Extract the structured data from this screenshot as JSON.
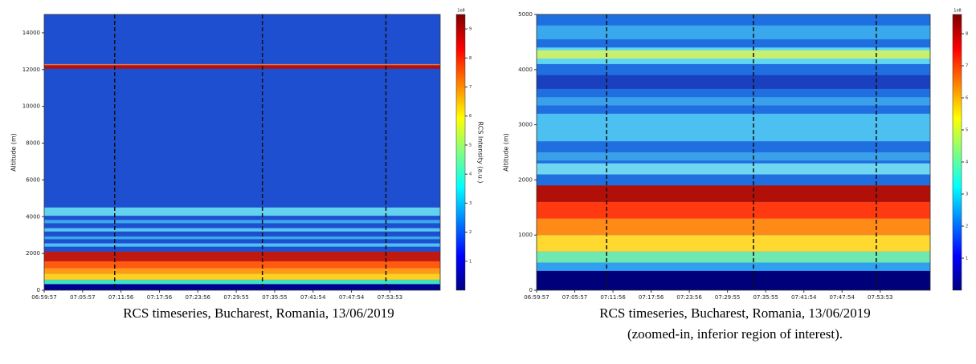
{
  "chart_data": [
    {
      "type": "heatmap",
      "y_label": "Altitude (m)",
      "categories": [
        "06:59:57",
        "07:05:57",
        "07:11:56",
        "07:17:56",
        "07:23:56",
        "07:29:55",
        "07:35:55",
        "07:41:54",
        "07:47:54",
        "07:53:53"
      ],
      "ylim": [
        0,
        15000
      ],
      "yticks": [
        0,
        2000,
        4000,
        6000,
        8000,
        10000,
        12000,
        14000
      ],
      "colorbar": {
        "label": "RCS Intensity (a.u.)",
        "exponent": "1e8",
        "ylim": [
          0,
          9.5
        ],
        "yticks": [
          1,
          2,
          3,
          4,
          5,
          6,
          7,
          8,
          9
        ]
      },
      "caption": [
        "RCS timeseries, Bucharest, Romania, 13/06/2019"
      ]
    },
    {
      "type": "heatmap",
      "y_label": "Altitude (m)",
      "categories": [
        "06:59:57",
        "07:05:57",
        "07:11:56",
        "07:17:56",
        "07:23:56",
        "07:29:55",
        "07:35:55",
        "07:41:54",
        "07:47:54",
        "07:53:53"
      ],
      "ylim": [
        0,
        5000
      ],
      "yticks": [
        0,
        1000,
        2000,
        3000,
        4000,
        5000
      ],
      "colorbar": {
        "exponent": "1e8",
        "ylim": [
          0,
          8.6
        ],
        "yticks": [
          1,
          2,
          3,
          4,
          5,
          6,
          7,
          8
        ]
      },
      "caption": [
        "RCS timeseries, Bucharest, Romania, 13/06/2019",
        "(zoomed-in, inferior region of interest)."
      ]
    }
  ]
}
